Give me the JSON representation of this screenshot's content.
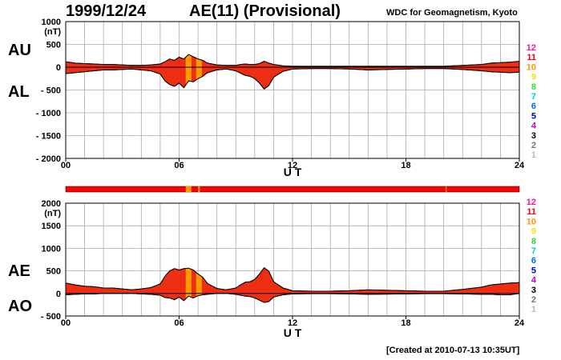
{
  "header": {
    "date": "1999/12/24",
    "title": "AE(11) (Provisional)",
    "source": "WDC for Geomagnetism, Kyoto"
  },
  "footer": {
    "created": "[Created at 2010-07-13 10:35UT]"
  },
  "legend": {
    "labels": [
      "12",
      "11",
      "10",
      "9",
      "8",
      "7",
      "6",
      "5",
      "4",
      "3",
      "2",
      "1"
    ],
    "colors": [
      "#ff1493",
      "#ff0000",
      "#ff9900",
      "#e6e600",
      "#33dd33",
      "#00cccc",
      "#0066ff",
      "#0000cc",
      "#cc00cc",
      "#000000",
      "#777777",
      "#bbbbbb"
    ]
  },
  "colors": {
    "fill": "#ee2e13",
    "fill_highlight": "#f59a00",
    "outline": "#000000",
    "grid": "#aaaaaa"
  },
  "chart_data": [
    {
      "type": "area",
      "panel": "top",
      "side_labels": [
        "AU",
        "AL"
      ],
      "xlabel": "U T",
      "ylabel_unit": "(nT)",
      "xlim": [
        0,
        24
      ],
      "ylim": [
        -2000,
        1000
      ],
      "xticks": [
        "00",
        "06",
        "12",
        "18",
        "24"
      ],
      "yticks": [
        "1000",
        "500",
        "0",
        "- 500",
        "- 1000",
        "- 1500",
        "- 2000"
      ],
      "x": [
        0,
        0.5,
        1,
        1.5,
        2,
        2.5,
        3,
        3.5,
        4,
        4.5,
        5,
        5.25,
        5.5,
        5.75,
        6,
        6.25,
        6.5,
        6.75,
        7,
        7.25,
        7.5,
        8,
        8.5,
        9,
        9.25,
        9.5,
        9.75,
        10,
        10.25,
        10.5,
        10.75,
        11,
        11.5,
        12,
        13,
        14,
        15,
        16,
        17,
        18,
        19,
        20,
        21,
        22,
        22.5,
        23,
        23.5,
        24
      ],
      "series": [
        {
          "values": [
            120,
            90,
            80,
            70,
            60,
            60,
            50,
            40,
            40,
            50,
            70,
            120,
            180,
            150,
            220,
            180,
            280,
            230,
            180,
            150,
            90,
            50,
            40,
            40,
            60,
            70,
            60,
            60,
            80,
            130,
            90,
            60,
            30,
            20,
            20,
            20,
            20,
            20,
            20,
            20,
            20,
            20,
            40,
            60,
            90,
            100,
            110,
            130
          ]
        },
        {
          "values": [
            -140,
            -120,
            -100,
            -80,
            -60,
            -60,
            -50,
            -40,
            -60,
            -80,
            -150,
            -300,
            -380,
            -420,
            -350,
            -450,
            -300,
            -320,
            -250,
            -200,
            -120,
            -60,
            -40,
            -80,
            -130,
            -180,
            -200,
            -250,
            -350,
            -480,
            -400,
            -220,
            -90,
            -40,
            -30,
            -30,
            -40,
            -60,
            -50,
            -40,
            -30,
            -30,
            -50,
            -80,
            -100,
            -110,
            -120,
            -110
          ]
        }
      ],
      "highlights": [
        {
          "start": 6.35,
          "end": 6.65,
          "level": "10"
        },
        {
          "start": 6.9,
          "end": 7.2,
          "level": "10"
        }
      ]
    },
    {
      "type": "area",
      "panel": "bottom",
      "side_labels": [
        "AE",
        "AO"
      ],
      "xlabel": "U T",
      "ylabel_unit": "(nT)",
      "xlim": [
        0,
        24
      ],
      "ylim": [
        -500,
        2000
      ],
      "xticks": [
        "00",
        "06",
        "12",
        "18",
        "24"
      ],
      "yticks": [
        "2000",
        "1500",
        "1000",
        "500",
        "0",
        "- 500"
      ],
      "x": [
        0,
        0.5,
        1,
        1.5,
        2,
        2.5,
        3,
        3.5,
        4,
        4.5,
        5,
        5.25,
        5.5,
        5.75,
        6,
        6.25,
        6.5,
        6.75,
        7,
        7.25,
        7.5,
        8,
        8.5,
        9,
        9.25,
        9.5,
        9.75,
        10,
        10.25,
        10.5,
        10.75,
        11,
        11.5,
        12,
        13,
        14,
        15,
        16,
        17,
        18,
        19,
        20,
        21,
        22,
        22.5,
        23,
        23.5,
        24
      ],
      "series": [
        {
          "values": [
            230,
            190,
            160,
            150,
            120,
            120,
            100,
            80,
            100,
            130,
            210,
            380,
            500,
            550,
            520,
            550,
            560,
            520,
            430,
            360,
            220,
            110,
            80,
            120,
            190,
            250,
            260,
            310,
            430,
            570,
            490,
            260,
            120,
            60,
            50,
            50,
            60,
            80,
            70,
            60,
            50,
            50,
            90,
            140,
            190,
            210,
            230,
            240
          ]
        },
        {
          "values": [
            -30,
            -20,
            -10,
            -10,
            0,
            0,
            0,
            0,
            -10,
            -20,
            -40,
            -90,
            -100,
            -140,
            -80,
            -160,
            -60,
            -100,
            -50,
            -30,
            -20,
            0,
            0,
            -20,
            -40,
            -60,
            -70,
            -100,
            -150,
            -200,
            -180,
            -80,
            -30,
            -10,
            -5,
            -5,
            -10,
            -20,
            -15,
            -10,
            -5,
            -5,
            -10,
            -20,
            -20,
            -30,
            -30,
            0
          ]
        }
      ],
      "highlights": [
        {
          "start": 6.35,
          "end": 6.65,
          "level": "10"
        },
        {
          "start": 6.9,
          "end": 7.2,
          "level": "10"
        }
      ]
    }
  ],
  "status_strip": {
    "base": "11",
    "marks": [
      {
        "start": 6.35,
        "end": 6.65,
        "level": "10"
      },
      {
        "start": 7.0,
        "end": 7.1,
        "level": "10"
      },
      {
        "start": 20.1,
        "end": 20.15,
        "level": "10"
      }
    ]
  }
}
